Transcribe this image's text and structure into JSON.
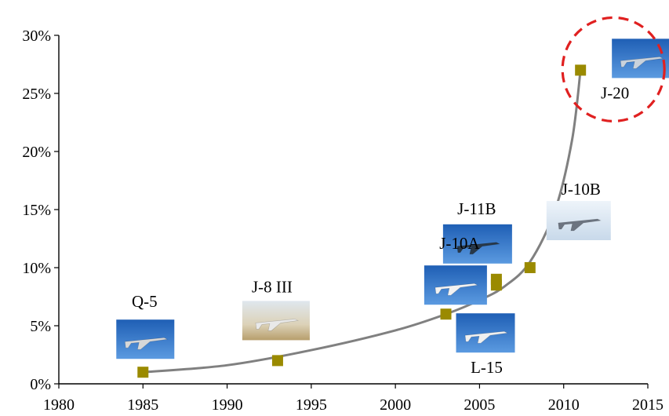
{
  "chart_data": {
    "type": "scatter",
    "title": "",
    "xlabel": "",
    "ylabel": "",
    "xlim": [
      1980,
      2015
    ],
    "ylim": [
      0,
      30
    ],
    "x_ticks": [
      "1980",
      "1985",
      "1990",
      "1995",
      "2000",
      "2005",
      "2010",
      "2015"
    ],
    "y_ticks": [
      "0%",
      "5%",
      "10%",
      "15%",
      "20%",
      "25%",
      "30%"
    ],
    "grid": false,
    "points": [
      {
        "x": 1985,
        "y": 1
      },
      {
        "x": 1993,
        "y": 2
      },
      {
        "x": 2003,
        "y": 6
      },
      {
        "x": 2006,
        "y": 8.5
      },
      {
        "x": 2006,
        "y": 9
      },
      {
        "x": 2008,
        "y": 10
      },
      {
        "x": 2011,
        "y": 27
      }
    ],
    "trend_curve": [
      {
        "x": 1985,
        "y": 1
      },
      {
        "x": 1990,
        "y": 1.6
      },
      {
        "x": 1995,
        "y": 2.9
      },
      {
        "x": 2000,
        "y": 4.6
      },
      {
        "x": 2003,
        "y": 6
      },
      {
        "x": 2005,
        "y": 7.2
      },
      {
        "x": 2006.5,
        "y": 8.4
      },
      {
        "x": 2008,
        "y": 10.5
      },
      {
        "x": 2009.5,
        "y": 15
      },
      {
        "x": 2010.5,
        "y": 21
      },
      {
        "x": 2011,
        "y": 27
      }
    ],
    "aircraft": [
      {
        "name": "Q-5",
        "year": 1985,
        "value": 1
      },
      {
        "name": "J-8 III",
        "year": 1993,
        "value": 2
      },
      {
        "name": "L-15",
        "year": 2003,
        "value": 6
      },
      {
        "name": "J-10A",
        "year": 2006,
        "value": 8.5
      },
      {
        "name": "J-11B",
        "year": 2006,
        "value": 9
      },
      {
        "name": "J-10B",
        "year": 2008,
        "value": 10
      },
      {
        "name": "J-20",
        "year": 2011,
        "value": 27
      }
    ],
    "colors": {
      "marker": "#9a8a00",
      "curve": "#808080",
      "highlight": "#e02020",
      "axis": "#000000",
      "photo_sky": "#2f6fc0",
      "photo_light": "#d8e6f2",
      "photo_desert": "#c9b58a"
    }
  }
}
